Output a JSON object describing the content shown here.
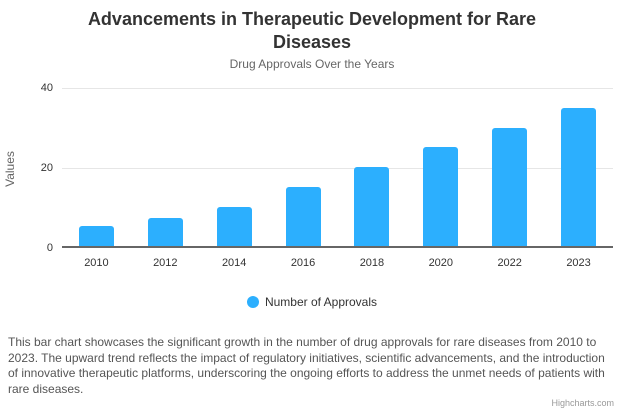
{
  "chart": {
    "title": "Advancements in Therapeutic Development for Rare Diseases",
    "subtitle": "Drug Approvals Over the Years",
    "caption": "This bar chart showcases the significant growth in the number of drug approvals for rare diseases from 2010 to 2023. The upward trend reflects the impact of regulatory initiatives, scientific advancements, and the introduction of innovative therapeutic platforms, underscoring the ongoing efforts to address the unmet needs of patients with rare diseases.",
    "credit": "Highcharts.com",
    "legend": {
      "items": [
        {
          "label": "Number of Approvals",
          "color": "#2caffe"
        }
      ]
    },
    "colors": {
      "bar": "#2caffe",
      "title_text": "#333333",
      "subtitle_text": "#666666",
      "gridline": "#e6e6e6",
      "axis_line": "#666666",
      "credit_text": "#999999"
    }
  },
  "chart_data": {
    "type": "bar",
    "categories": [
      "2010",
      "2012",
      "2014",
      "2016",
      "2018",
      "2020",
      "2022",
      "2023"
    ],
    "series": [
      {
        "name": "Number of Approvals",
        "values": [
          5,
          7,
          10,
          15,
          20,
          25,
          30,
          35
        ]
      }
    ],
    "title": "Advancements in Therapeutic Development for Rare Diseases",
    "subtitle": "Drug Approvals Over the Years",
    "xlabel": "",
    "ylabel": "Values",
    "ylim": [
      0,
      40
    ],
    "yticks": [
      0,
      20,
      40
    ],
    "grid": true,
    "legend_position": "bottom",
    "bar_color": "#2caffe"
  }
}
